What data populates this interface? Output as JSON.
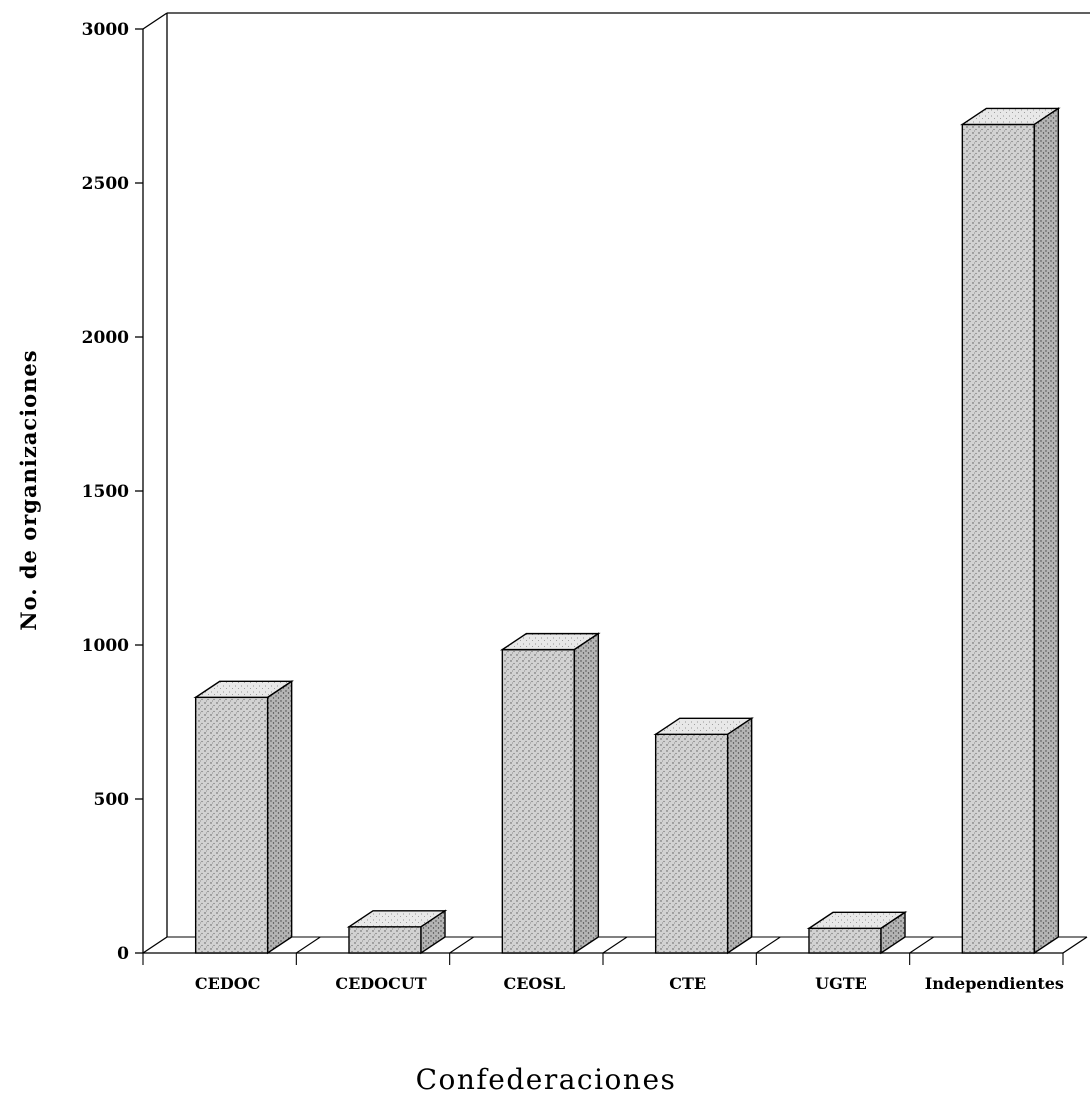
{
  "chart_data": {
    "type": "bar",
    "title": "",
    "xlabel": "Confederaciones",
    "ylabel": "No. de organizaciones",
    "categories": [
      "CEDOC",
      "CEDOCUT",
      "CEOSL",
      "CTE",
      "UGTE",
      "Independientes"
    ],
    "values": [
      830,
      85,
      985,
      710,
      80,
      2690
    ],
    "ylim": [
      0,
      3000
    ],
    "yticks": [
      "0",
      "500",
      "1000",
      "1500",
      "2000",
      "2500",
      "3000"
    ],
    "grid": false,
    "three_d": true,
    "bar_fill": "stippled gray",
    "colors": {
      "bar_face": "#c9c9c9",
      "bar_top": "#e6e6e6",
      "bar_side": "#a8a8a8",
      "line": "#000000"
    }
  }
}
